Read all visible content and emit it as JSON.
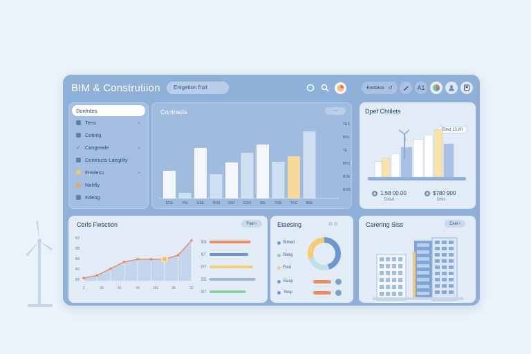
{
  "app": {
    "title": "BIM & Construtiion"
  },
  "search": {
    "placeholder": "Enigetion fruit"
  },
  "topbar": {
    "pill_label": "Eatdass",
    "pill_arrow": "↺",
    "a_label": "A1"
  },
  "sidebar": {
    "items": [
      {
        "label": "Donfrdes",
        "active": true
      },
      {
        "label": "Tens"
      },
      {
        "label": "Cotinig"
      },
      {
        "label": "Cangreale"
      },
      {
        "label": "Contructs Laegility"
      },
      {
        "label": "Fredess"
      },
      {
        "label": "Nahfly"
      },
      {
        "label": "Kdeog"
      }
    ]
  },
  "contracts": {
    "title": "Contracts",
    "toolbar": "⋯",
    "y_ticks": [
      "TES",
      "BOL",
      "TE",
      "BPC",
      "RDE",
      "ROS"
    ],
    "x_ticks": [
      "EGE",
      "PSI",
      "ESE",
      "TRSI",
      "OST",
      "COO",
      "BG",
      "TOE",
      "TOC",
      "BSE"
    ]
  },
  "blueprint": {
    "title": "Dpef Chtilets",
    "legend": "Ebsd 13.80",
    "stat1": {
      "value": "1,58 00.00",
      "label": "Dbsd"
    },
    "stat2": {
      "value": "$780 900",
      "label": "Dhts"
    }
  },
  "cost": {
    "title": "Cerls Fwsction",
    "pill": "Fael",
    "y_ticks": [
      "B2",
      "B8",
      "B6",
      "B0",
      "B6"
    ],
    "x_ticks": [
      "2",
      "30",
      "61",
      "40",
      "101",
      "38",
      "32"
    ],
    "bar_labels": [
      "B3",
      "97",
      "P7",
      "B5",
      "B7"
    ]
  },
  "budget": {
    "title": "Etaesing",
    "controls": "⊙ ⊙",
    "legend": [
      "Stmed",
      "Sterg",
      "Fted"
    ],
    "rows": [
      {
        "label": "Easp",
        "val": "Fwsd"
      },
      {
        "label": "Yesp",
        "val": "Fwsd"
      }
    ]
  },
  "site": {
    "title": "Carering Siss",
    "pill": "Eael"
  },
  "chart_data": [
    {
      "type": "bar",
      "title": "Contracts",
      "categories": [
        "EGE",
        "PSI",
        "ESE",
        "TRSI",
        "OST",
        "COO",
        "BG",
        "TOE",
        "TOC",
        "BSE"
      ],
      "series": [
        {
          "name": "light",
          "values": [
            40,
            8,
            73,
            35,
            52,
            66,
            78,
            53,
            72,
            97
          ]
        },
        {
          "name": "highlight",
          "values": [
            0,
            0,
            0,
            0,
            0,
            0,
            0,
            0,
            61,
            0
          ]
        }
      ],
      "colors": {
        "main": "#f3f7fc",
        "soft": "#d0e0f3",
        "accent": "#f7d99a"
      }
    },
    {
      "type": "line",
      "title": "Cerls Fwsction",
      "x": [
        1,
        2,
        3,
        4,
        5,
        6,
        7,
        8,
        9
      ],
      "values": [
        2,
        4,
        9,
        14,
        16,
        16,
        16,
        19,
        30
      ],
      "ylim": [
        0,
        35
      ],
      "colors": {
        "line": "#ef8561",
        "area": "#bcd0e8",
        "highlight": "#f6c06a"
      }
    },
    {
      "type": "bar",
      "title": "Cerls Fwsction",
      "categories": [
        "B3",
        "97",
        "P7",
        "B5",
        "B7"
      ],
      "values": [
        85,
        80,
        90,
        95,
        75
      ],
      "colors": [
        "#ef8a63",
        "#6e96cf",
        "#f4cc73",
        "#9eb8dd",
        "#8fd1a8"
      ]
    },
    {
      "type": "pie",
      "title": "Etaesing",
      "categories": [
        "Stmed",
        "Sterg",
        "Fted"
      ],
      "values": [
        45,
        25,
        30
      ],
      "colors": [
        "#6e96cf",
        "#bfe0e9",
        "#f4cc73"
      ]
    },
    {
      "type": "bar",
      "title": "Dpef Chtilets",
      "values": [
        14,
        17,
        21,
        27,
        34,
        38,
        43,
        30
      ],
      "colors": [
        "#ffffff",
        "#fbe2a8",
        "#a8c1e2"
      ]
    }
  ]
}
